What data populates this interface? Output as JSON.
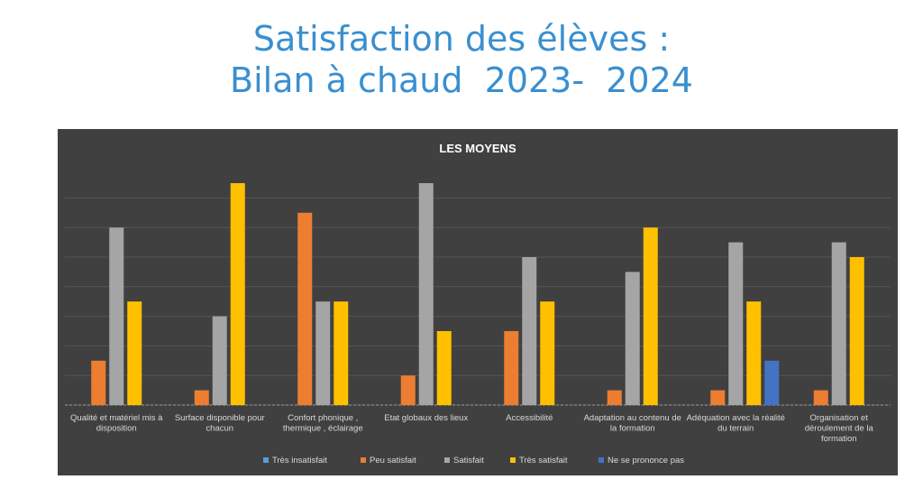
{
  "slide": {
    "title_line1": "Satisfaction des élèves :",
    "title_line2": "Bilan à chaud  2023-  2024"
  },
  "chart_data": {
    "type": "bar",
    "title": "LES MOYENS",
    "categories": [
      "Qualité et matériel mis à disposition",
      "Surface disponible pour chacun",
      "Confort phonique , thermique , éclairage",
      "Etat globaux des lieux",
      "Accessibilité",
      "Adaptation au contenu de la formation",
      "Adéquation avec la réalité du terrain",
      "Organisation et déroulement de la formation"
    ],
    "series": [
      {
        "name": "Très insatisfait",
        "color": "#5b9bd5",
        "values": [
          0,
          0,
          0,
          0,
          0,
          0,
          0,
          0
        ]
      },
      {
        "name": "Peu satisfait",
        "color": "#ed7d31",
        "values": [
          3,
          1,
          13,
          2,
          5,
          1,
          1,
          1
        ]
      },
      {
        "name": "Satisfait",
        "color": "#a5a5a5",
        "values": [
          12,
          6,
          7,
          15,
          10,
          9,
          11,
          11
        ]
      },
      {
        "name": "Très satisfait",
        "color": "#ffc000",
        "values": [
          7,
          15,
          7,
          5,
          7,
          12,
          7,
          10
        ]
      },
      {
        "name": "Ne se prononce pas",
        "color": "#4472c4",
        "values": [
          0,
          0,
          0,
          0,
          0,
          0,
          3,
          0
        ]
      }
    ],
    "ylim": [
      0,
      15
    ],
    "grid": true,
    "legend_position": "bottom"
  }
}
